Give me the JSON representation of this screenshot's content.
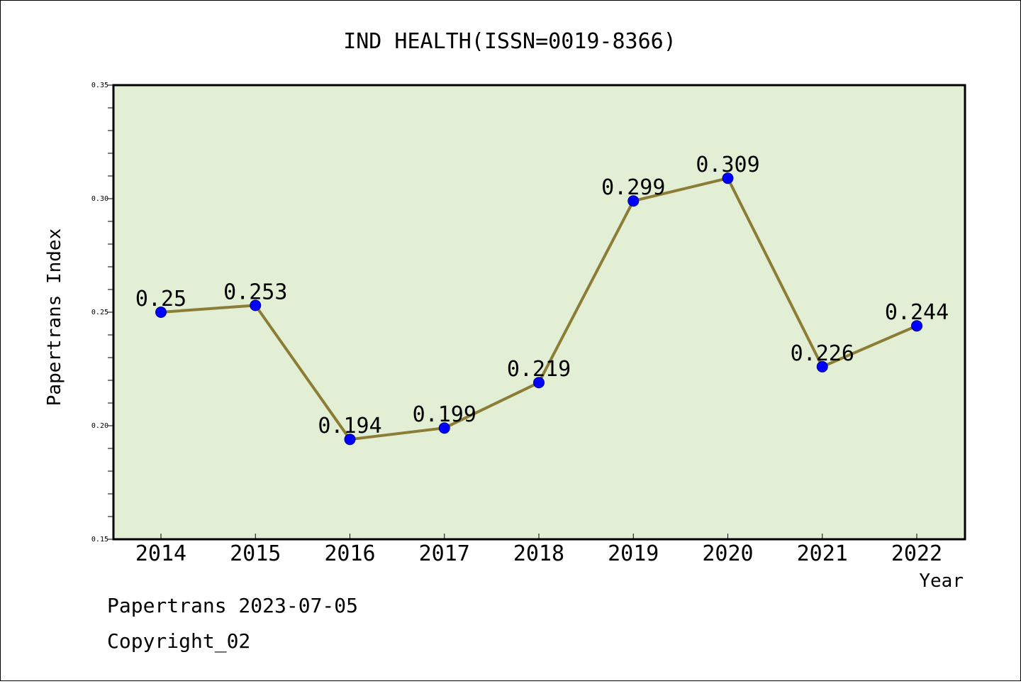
{
  "chart_data": {
    "type": "line",
    "title": "IND HEALTH(ISSN=0019-8366)",
    "xlabel": "Year",
    "ylabel": "Papertrans Index",
    "categories": [
      "2014",
      "2015",
      "2016",
      "2017",
      "2018",
      "2019",
      "2020",
      "2021",
      "2022"
    ],
    "series": [
      {
        "values": [
          0.25,
          0.253,
          0.194,
          0.199,
          0.219,
          0.299,
          0.309,
          0.226,
          0.244
        ],
        "data_labels": [
          "0.25",
          "0.253",
          "0.194",
          "0.199",
          "0.219",
          "0.299",
          "0.309",
          "0.226",
          "0.244"
        ]
      }
    ],
    "ylim": [
      0.15,
      0.35
    ],
    "yticks": [
      "0.15",
      "0.20",
      "0.25",
      "0.30",
      "0.35"
    ],
    "grid": false,
    "legend": "none",
    "colors": {
      "plot_background": "#e2efd5",
      "line": "#8b7d35",
      "marker": "#0000ff",
      "axes": "#000000"
    }
  },
  "footer": {
    "source": "Papertrans 2023-07-05",
    "copyright": "Copyright_02"
  }
}
